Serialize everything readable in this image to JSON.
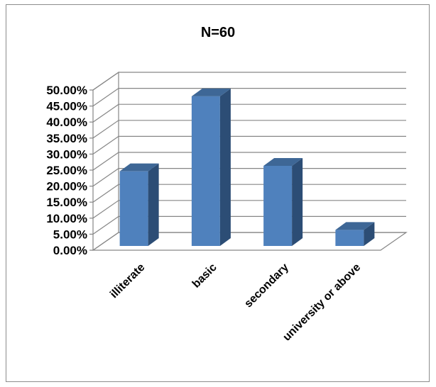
{
  "chart_data": {
    "type": "bar",
    "title": "N=60",
    "xlabel": "",
    "ylabel": "",
    "categories": [
      "illiterate",
      "basic",
      "secondary",
      "university or above"
    ],
    "values": [
      23.3,
      46.7,
      25.0,
      5.0
    ],
    "y_ticks": [
      "0.00%",
      "5.00%",
      "10.00%",
      "15.00%",
      "20.00%",
      "25.00%",
      "30.00%",
      "35.00%",
      "40.00%",
      "45.00%",
      "50.00%"
    ],
    "ylim": [
      0,
      50
    ],
    "grid": true,
    "legend": "none",
    "style": "3d-columns",
    "bar_color": "#4f81bd",
    "bar_side_color": "#2c4d75",
    "bar_top_color": "#3e6796"
  }
}
